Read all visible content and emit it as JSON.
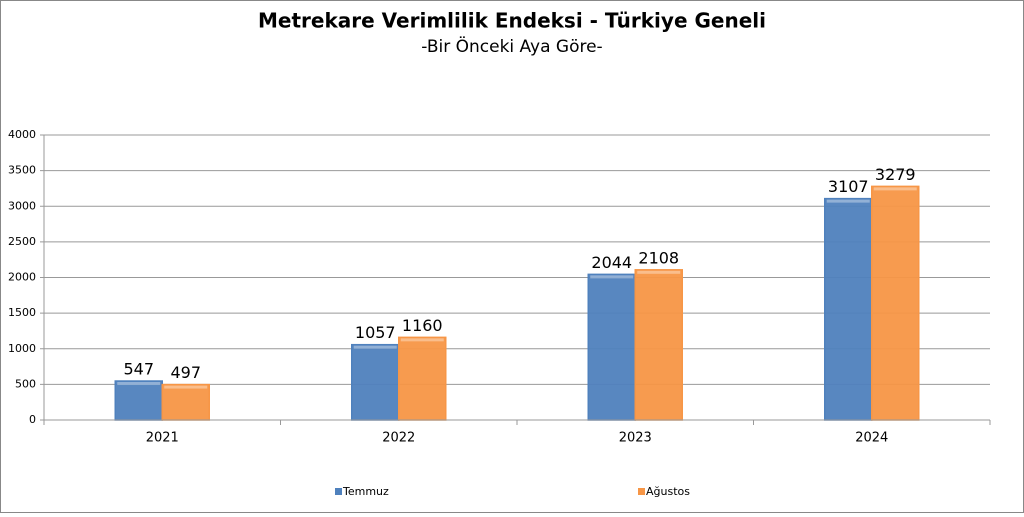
{
  "chart_data": {
    "type": "bar",
    "title": "Metrekare Verimlilik Endeksi - Türkiye Geneli",
    "subtitle": "-Bir Önceki Aya Göre-",
    "categories": [
      "2021",
      "2022",
      "2023",
      "2024"
    ],
    "series": [
      {
        "name": "Temmuz",
        "color": "#4f81bd",
        "values": [
          547,
          1057,
          2044,
          3107
        ]
      },
      {
        "name": "Ağustos",
        "color": "#f79646",
        "values": [
          497,
          1160,
          2108,
          3279
        ]
      }
    ],
    "ylim": [
      0,
      4000
    ],
    "yticks": [
      0,
      500,
      1000,
      1500,
      2000,
      2500,
      3000,
      3500,
      4000
    ],
    "grid": true,
    "legend": "bottom"
  }
}
